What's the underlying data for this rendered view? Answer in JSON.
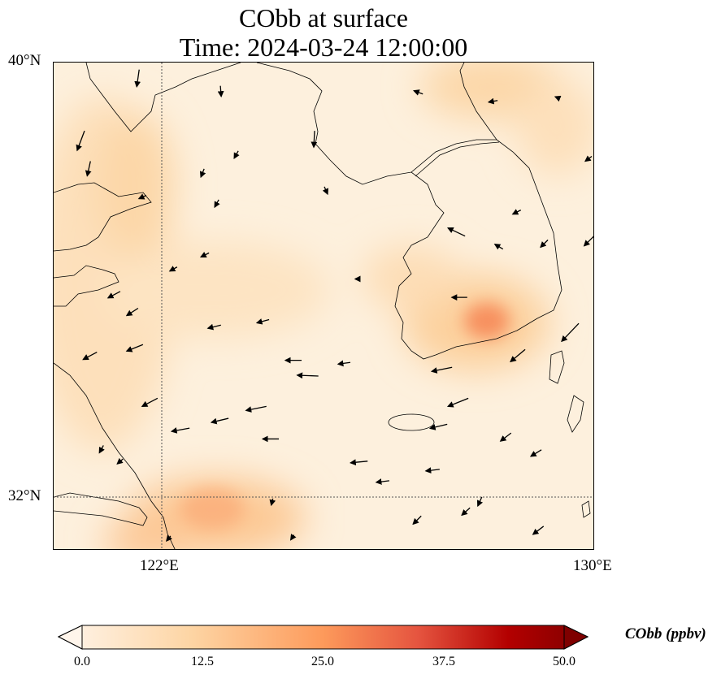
{
  "title": {
    "line1": "CObb at surface",
    "line2": "Time: 2024-03-24 12:00:00"
  },
  "axes": {
    "lat_ticks": [
      {
        "label": "40°N",
        "value": 40
      },
      {
        "label": "32°N",
        "value": 32
      }
    ],
    "lon_ticks": [
      {
        "label": "122°E",
        "value": 122
      },
      {
        "label": "130°E",
        "value": 130
      }
    ],
    "extent": {
      "lon": [
        120,
        130
      ],
      "lat": [
        31,
        40
      ]
    }
  },
  "colorbar": {
    "label": "CObb (ppbv)",
    "ticks": [
      "0.0",
      "12.5",
      "25.0",
      "37.5",
      "50.0"
    ],
    "range": [
      0,
      50
    ],
    "colors": [
      "#fff5eb",
      "#fdd5a4",
      "#fd9a5b",
      "#e5543f",
      "#b30000",
      "#7f0000"
    ]
  },
  "chart_data": {
    "type": "map",
    "variable": "CObb",
    "units": "ppbv",
    "hotspots": [
      {
        "lon": 127.9,
        "lat": 35.0,
        "value": 22
      },
      {
        "lon": 122.9,
        "lat": 31.6,
        "value": 16
      },
      {
        "lon": 127.7,
        "lat": 36.8,
        "value": 12
      },
      {
        "lon": 121.6,
        "lat": 37.9,
        "value": 10
      },
      {
        "lon": 126.0,
        "lat": 36.3,
        "value": 9
      }
    ],
    "wind_vectors": [
      [
        120.57,
        38.74,
        -0.9,
        -2.4
      ],
      [
        121.58,
        39.87,
        -0.3,
        -2.1
      ],
      [
        123.08,
        39.57,
        0.1,
        -1.3
      ],
      [
        124.82,
        38.74,
        -0.1,
        -2.0
      ],
      [
        126.82,
        39.42,
        -1.1,
        0.4
      ],
      [
        128.2,
        39.3,
        -1.1,
        -0.2
      ],
      [
        129.34,
        39.34,
        -0.5,
        0.2
      ],
      [
        123.41,
        38.37,
        -0.5,
        -0.9
      ],
      [
        122.78,
        38.04,
        -0.4,
        -1.0
      ],
      [
        120.68,
        38.18,
        -0.4,
        -1.8
      ],
      [
        121.71,
        37.55,
        -0.9,
        -0.4
      ],
      [
        123.05,
        37.47,
        -0.5,
        -0.9
      ],
      [
        125.0,
        37.71,
        0.4,
        -0.9
      ],
      [
        128.63,
        37.28,
        -1.0,
        -0.5
      ],
      [
        129.94,
        38.27,
        -0.8,
        -0.6
      ],
      [
        129.98,
        36.8,
        -1.2,
        -1.2
      ],
      [
        129.13,
        36.73,
        -0.9,
        -0.9
      ],
      [
        127.6,
        36.8,
        -2.1,
        1.0
      ],
      [
        128.3,
        36.56,
        -1.0,
        0.6
      ],
      [
        122.28,
        36.23,
        -0.9,
        -0.5
      ],
      [
        122.87,
        36.49,
        -1.0,
        -0.5
      ],
      [
        125.66,
        36.01,
        -0.6,
        0
      ],
      [
        127.64,
        35.67,
        -1.9,
        0
      ],
      [
        121.23,
        35.78,
        -1.5,
        -0.8
      ],
      [
        121.56,
        35.47,
        -1.4,
        -0.9
      ],
      [
        123.09,
        35.16,
        -1.6,
        -0.4
      ],
      [
        123.98,
        35.26,
        -1.5,
        -0.4
      ],
      [
        124.58,
        34.51,
        -2.0,
        0
      ],
      [
        124.89,
        34.22,
        -2.6,
        0.1
      ],
      [
        125.48,
        34.47,
        -1.5,
        -0.2
      ],
      [
        120.8,
        34.66,
        -1.7,
        -0.9
      ],
      [
        121.65,
        34.8,
        -2.0,
        -0.8
      ],
      [
        121.92,
        33.81,
        -1.9,
        -1.0
      ],
      [
        123.93,
        33.66,
        -2.5,
        -0.5
      ],
      [
        123.23,
        33.44,
        -2.1,
        -0.5
      ],
      [
        122.51,
        33.26,
        -2.2,
        -0.4
      ],
      [
        124.16,
        33.06,
        -2.0,
        0
      ],
      [
        127.36,
        34.38,
        -2.5,
        -0.5
      ],
      [
        127.66,
        33.81,
        -2.5,
        -1.0
      ],
      [
        127.27,
        33.33,
        -2.1,
        -0.5
      ],
      [
        129.7,
        35.19,
        -2.1,
        -2.2
      ],
      [
        128.71,
        34.71,
        -1.8,
        -1.5
      ],
      [
        128.45,
        33.17,
        -1.3,
        -1.0
      ],
      [
        129.01,
        32.86,
        -1.3,
        -0.8
      ],
      [
        125.8,
        32.65,
        -2.1,
        -0.2
      ],
      [
        127.13,
        32.5,
        -1.7,
        -0.2
      ],
      [
        126.2,
        32.29,
        -1.6,
        -0.2
      ],
      [
        120.92,
        32.94,
        -0.5,
        -0.9
      ],
      [
        121.28,
        32.69,
        -0.7,
        -0.6
      ],
      [
        127.91,
        31.99,
        -0.5,
        -1.1
      ],
      [
        127.69,
        31.79,
        -1.0,
        -0.9
      ],
      [
        129.05,
        31.45,
        -1.3,
        -1.0
      ],
      [
        126.79,
        31.64,
        -1.0,
        -1.0
      ],
      [
        124.44,
        31.29,
        -0.4,
        -0.6
      ],
      [
        122.16,
        31.27,
        -0.5,
        -0.6
      ],
      [
        124.05,
        31.96,
        -0.2,
        -0.8
      ]
    ]
  }
}
